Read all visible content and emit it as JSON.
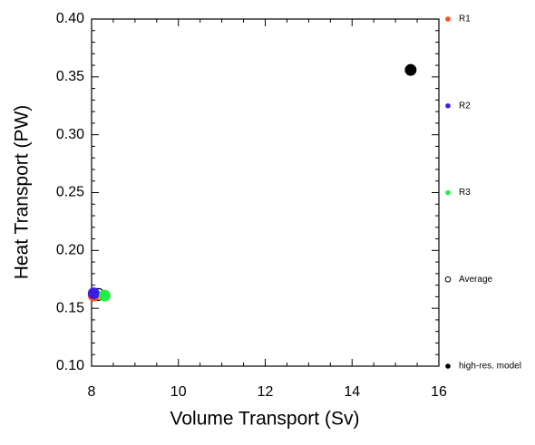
{
  "chart_data": {
    "type": "scatter",
    "x_label": "Volume Transport (Sv)",
    "y_label": "Heat Transport (PW)",
    "xlim": [
      8,
      16
    ],
    "xticks": [
      8,
      10,
      12,
      14,
      16
    ],
    "ylim": [
      0.1,
      0.4
    ],
    "yticks": [
      {
        "value": 0.1,
        "label": "0.10"
      },
      0.15,
      {
        "value": 0.2,
        "label": "0.20"
      },
      0.25,
      {
        "value": 0.3,
        "label": "0.30"
      },
      0.35,
      {
        "value": 0.4,
        "label": "0.40"
      }
    ],
    "grid": false,
    "legend": "right",
    "series": [
      {
        "name": "R1",
        "color": "#ff4a1a",
        "marker": "filled",
        "x": [
          8.05
        ],
        "values": [
          0.161
        ]
      },
      {
        "name": "R2",
        "color": "#3b1ee6",
        "marker": "filled",
        "x": [
          8.05
        ],
        "values": [
          0.163
        ]
      },
      {
        "name": "R3",
        "color": "#22ee44",
        "marker": "filled",
        "x": [
          8.3
        ],
        "values": [
          0.161
        ]
      },
      {
        "name": "Average",
        "color": "#000000",
        "marker": "open",
        "x": [
          8.15
        ],
        "values": [
          0.162
        ]
      },
      {
        "name": "high-res. model",
        "color": "#000000",
        "marker": "filled",
        "x": [
          15.35
        ],
        "values": [
          0.356
        ]
      }
    ]
  }
}
